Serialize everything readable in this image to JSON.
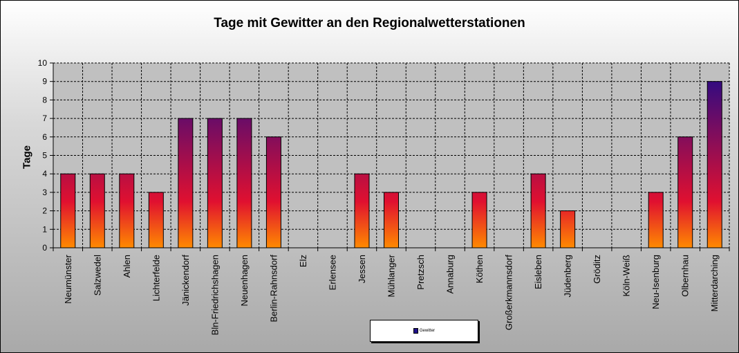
{
  "chart_data": {
    "type": "bar",
    "title": "Tage mit Gewitter  an den Regionalwetterstationen",
    "ylabel": "Tage",
    "xlabel": "",
    "ylim": [
      0,
      10
    ],
    "yticks": [
      "0",
      "1",
      "2",
      "3",
      "4",
      "5",
      "6",
      "7",
      "8",
      "9",
      "10"
    ],
    "categories": [
      "Neumünster",
      "Salzwedel",
      "Ahlen",
      "Lichterfelde",
      "Jänickendorf",
      "Bln-Friedrichshagen",
      "Neuenhagen",
      "Berlin-Rahnsdorf",
      "Elz",
      "Erlensee",
      "Jessen",
      "Mühlanger",
      "Pretzsch",
      "Annaburg",
      "Köthen",
      "Großerkmannsdorf",
      "Eisleben",
      "Jüdenberg",
      "Gröditz",
      "Köln-Weiß",
      "Neu-Isenburg",
      "Olbernhau",
      "Mitterdarching"
    ],
    "series": [
      {
        "name": "Gewitter",
        "values": [
          4,
          4,
          4,
          3,
          7,
          7,
          7,
          6,
          0,
          0,
          4,
          3,
          0,
          0,
          3,
          0,
          4,
          2,
          0,
          0,
          3,
          6,
          9
        ]
      }
    ],
    "grid": true,
    "legend_position": "bottom",
    "colors": {
      "bar_top": "#1a0a8c",
      "bar_mid": "#e01030",
      "bar_bottom": "#ff8a00",
      "plot_bg": "#c0c0c0"
    }
  }
}
